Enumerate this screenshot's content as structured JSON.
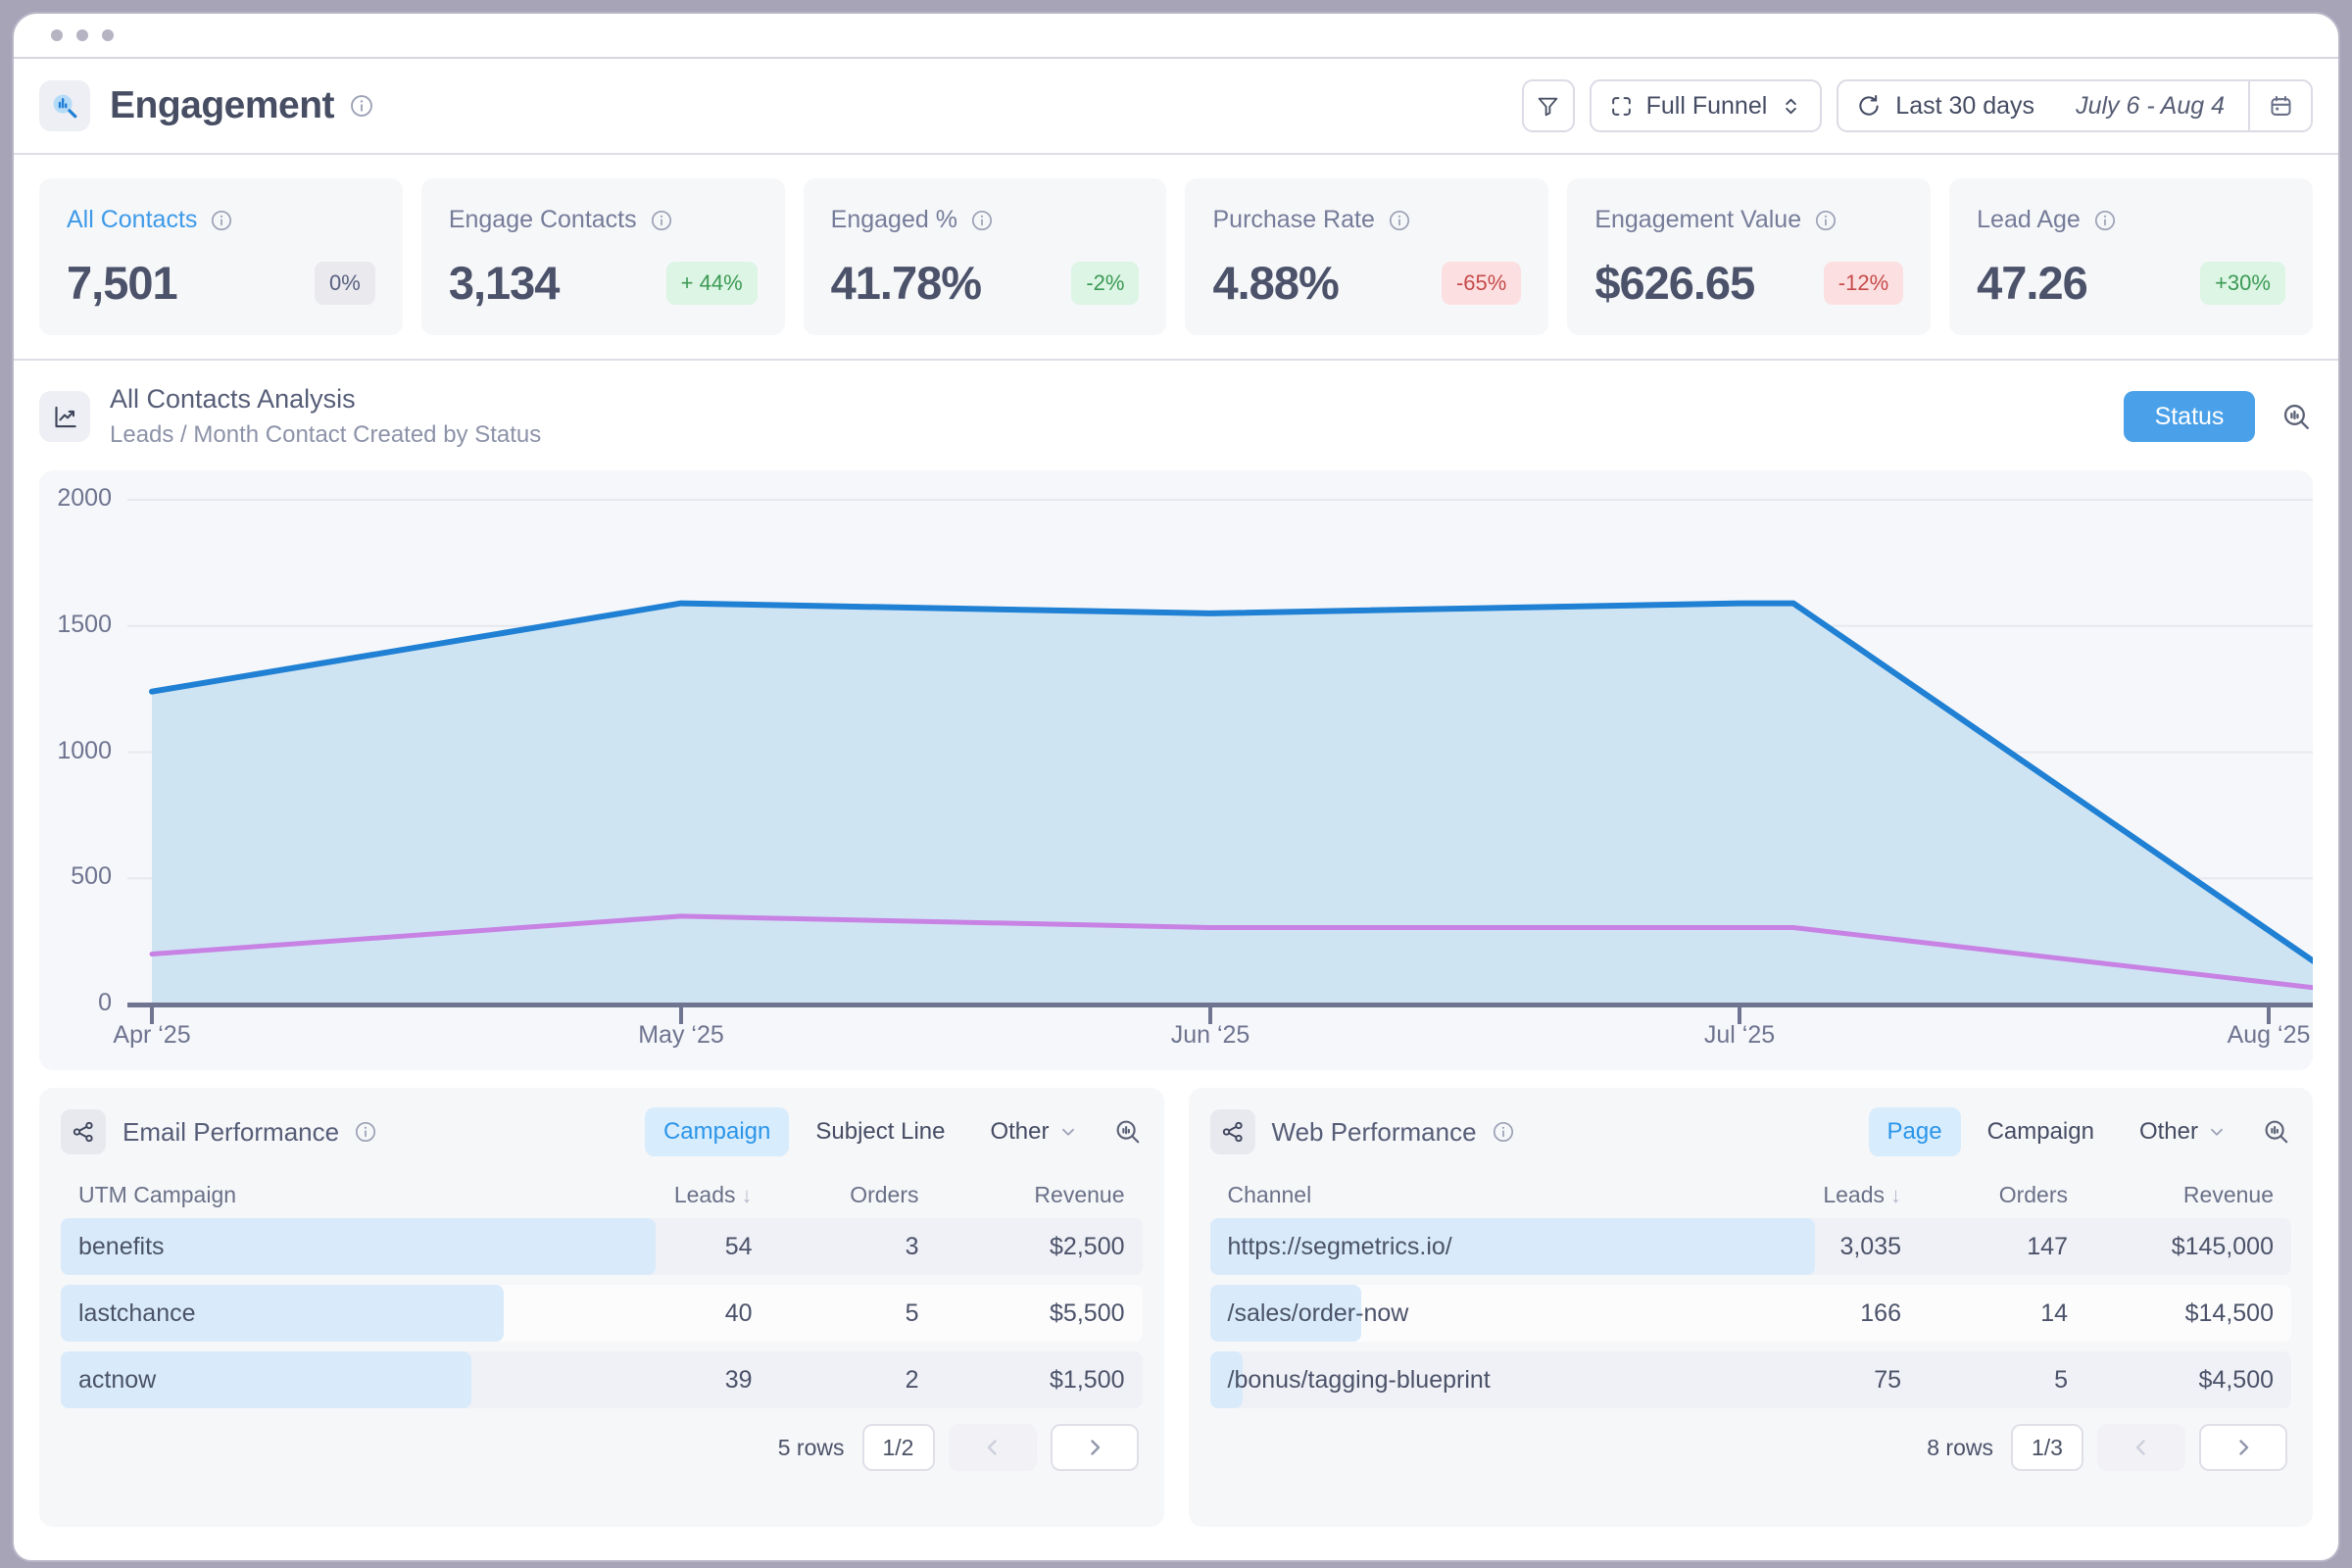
{
  "header": {
    "title": "Engagement",
    "controls": {
      "funnel_label": "Full Funnel",
      "range_label": "Last 30 days",
      "range_dates": "July 6 - Aug 4"
    }
  },
  "kpis": [
    {
      "label": "All Contacts",
      "value": "7,501",
      "delta": "0%",
      "delta_kind": "neutral",
      "selected": true
    },
    {
      "label": "Engage Contacts",
      "value": "3,134",
      "delta": "+ 44%",
      "delta_kind": "up",
      "selected": false
    },
    {
      "label": "Engaged %",
      "value": "41.78%",
      "delta": "-2%",
      "delta_kind": "up",
      "selected": false
    },
    {
      "label": "Purchase Rate",
      "value": "4.88%",
      "delta": "-65%",
      "delta_kind": "down",
      "selected": false
    },
    {
      "label": "Engagement Value",
      "value": "$626.65",
      "delta": "-12%",
      "delta_kind": "down",
      "selected": false
    },
    {
      "label": "Lead Age",
      "value": "47.26",
      "delta": "+30%",
      "delta_kind": "up",
      "selected": false
    }
  ],
  "chart_section": {
    "title": "All Contacts Analysis",
    "subtitle": "Leads / Month Contact Created by Status",
    "status_button": "Status"
  },
  "chart_data": {
    "type": "area",
    "x": [
      "Apr ‘25",
      "May ‘25",
      "Jun ‘25",
      "Jul ‘25",
      "Aug ‘25"
    ],
    "series": [
      {
        "name": "all-contacts",
        "color": "#1f80d4",
        "fill": "#cfe4f3",
        "values": [
          1240,
          1590,
          1550,
          1590,
          160
        ]
      },
      {
        "name": "secondary-status",
        "color": "#c782e3",
        "fill": null,
        "values": [
          200,
          350,
          305,
          305,
          65
        ]
      }
    ],
    "ylim": [
      0,
      2000
    ],
    "yticks": [
      0,
      500,
      1000,
      1500,
      2000
    ],
    "grid": "faint-horizontal",
    "legend": "none"
  },
  "email_panel": {
    "title": "Email Performance",
    "tabs": [
      {
        "label": "Campaign",
        "active": true,
        "chevron": false
      },
      {
        "label": "Subject Line",
        "active": false,
        "chevron": false
      },
      {
        "label": "Other",
        "active": false,
        "chevron": true
      }
    ],
    "columns": [
      "UTM Campaign",
      "Leads",
      "Orders",
      "Revenue"
    ],
    "sort_column": "Leads",
    "rows": [
      {
        "name": "benefits",
        "leads": "54",
        "orders": "3",
        "revenue": "$2,500",
        "bar": 0.55
      },
      {
        "name": "lastchance",
        "leads": "40",
        "orders": "5",
        "revenue": "$5,500",
        "bar": 0.41
      },
      {
        "name": "actnow",
        "leads": "39",
        "orders": "2",
        "revenue": "$1,500",
        "bar": 0.38
      }
    ],
    "footer": {
      "rows_label": "5 rows",
      "page": "1/2"
    }
  },
  "web_panel": {
    "title": "Web Performance",
    "tabs": [
      {
        "label": "Page",
        "active": true,
        "chevron": false
      },
      {
        "label": "Campaign",
        "active": false,
        "chevron": false
      },
      {
        "label": "Other",
        "active": false,
        "chevron": true
      }
    ],
    "columns": [
      "Channel",
      "Leads",
      "Orders",
      "Revenue"
    ],
    "sort_column": "Leads",
    "rows": [
      {
        "name": "https://segmetrics.io/",
        "leads": "3,035",
        "orders": "147",
        "revenue": "$145,000",
        "bar": 0.56
      },
      {
        "name": "/sales/order-now",
        "leads": "166",
        "orders": "14",
        "revenue": "$14,500",
        "bar": 0.14
      },
      {
        "name": "/bonus/tagging-blueprint",
        "leads": "75",
        "orders": "5",
        "revenue": "$4,500",
        "bar": 0.03
      }
    ],
    "footer": {
      "rows_label": "8 rows",
      "page": "1/3"
    }
  },
  "icons": {
    "report-icon": "magnifier-with-bars",
    "info-icon": "circled-i",
    "filter-icon": "funnel",
    "funnel-scope-icon": "scan-brackets",
    "select-chevrons-icon": "up-down-chevrons",
    "refresh-icon": "circular-arrow",
    "calendar-icon": "calendar",
    "chart-icon": "line-chart",
    "share-icon": "share-nodes",
    "zoom-analysis-icon": "magnifier-with-bars",
    "prev-icon": "chevron-left",
    "next-icon": "chevron-right",
    "sort_desc_glyph": "↓"
  },
  "colors": {
    "accent_blue": "#2e96e9",
    "chart_blue": "#1f80d4",
    "chart_fill": "#cfe4f3",
    "chart_purple": "#c782e3",
    "positive_text": "#3c9a55",
    "positive_bg": "#dcf5e4",
    "negative_text": "#c64a4a",
    "negative_bg": "#fce0e1",
    "neutral_text": "#596080",
    "neutral_bg": "#e9e9ee"
  }
}
